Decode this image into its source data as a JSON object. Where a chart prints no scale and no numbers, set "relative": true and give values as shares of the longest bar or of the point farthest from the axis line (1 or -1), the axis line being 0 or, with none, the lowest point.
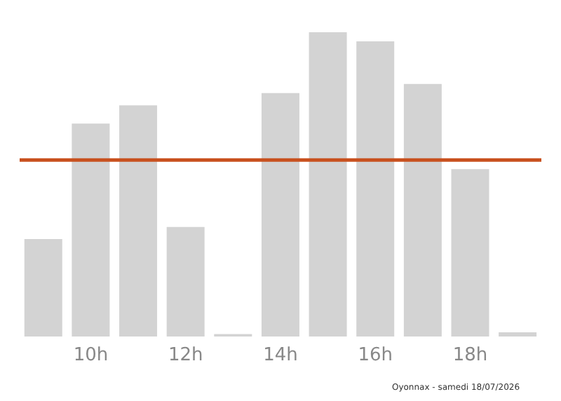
{
  "chart_data": {
    "type": "bar",
    "relative": true,
    "categories": [
      null,
      "10h",
      null,
      "12h",
      null,
      "14h",
      null,
      "16h",
      null,
      "18h",
      null
    ],
    "values": [
      0.32,
      0.7,
      0.76,
      0.36,
      0.008,
      0.8,
      1,
      0.97,
      0.83,
      0.55,
      0.014
    ],
    "color": "#d3d3d3",
    "ref_lines": [
      {
        "axis": "y",
        "value": 0.58,
        "color": "#c8501e"
      }
    ],
    "annotations": [
      "Oyonnax - samedi 18/07/2026"
    ],
    "grid": false,
    "legend": false
  }
}
